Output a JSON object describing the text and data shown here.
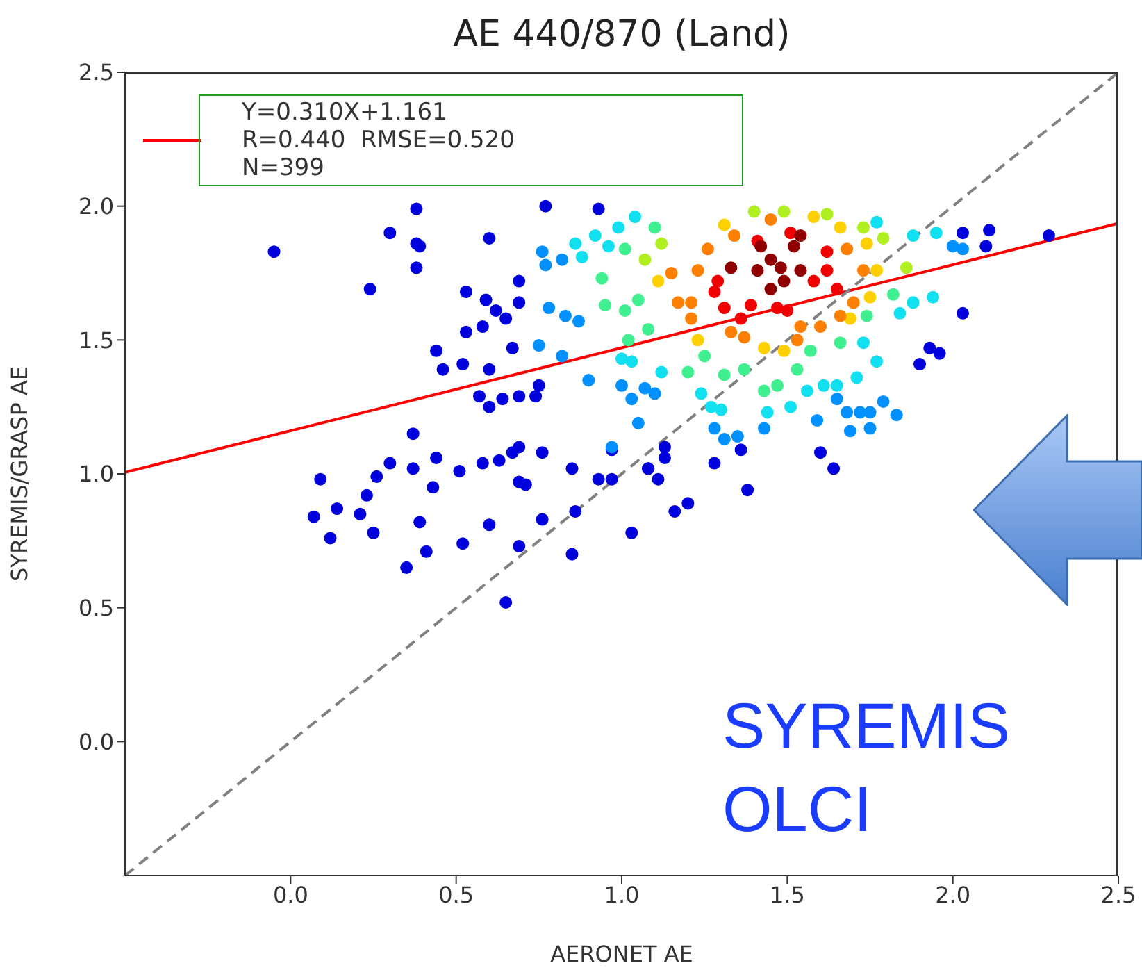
{
  "chart_data": {
    "type": "scatter",
    "title": "AE 440/870 (Land)",
    "xlabel": "AERONET AE",
    "ylabel": "SYREMIS/GRASP AE",
    "xlim": [
      -0.5,
      2.5
    ],
    "ylim": [
      -0.5,
      2.5
    ],
    "xticks": [
      {
        "value": 0,
        "label": "0.0"
      },
      {
        "value": 0.5,
        "label": "0.5"
      },
      {
        "value": 1,
        "label": "1.0"
      },
      {
        "value": 1.5,
        "label": "1.5"
      },
      {
        "value": 2,
        "label": "2.0"
      },
      {
        "value": 2.5,
        "label": "2.5"
      }
    ],
    "yticks": [
      {
        "value": 0,
        "label": "0.0"
      },
      {
        "value": 0.5,
        "label": "0.5"
      },
      {
        "value": 1,
        "label": "1.0"
      },
      {
        "value": 1.5,
        "label": "1.5"
      },
      {
        "value": 2,
        "label": "2.0"
      },
      {
        "value": 2.5,
        "label": "2.5"
      }
    ],
    "grid": false,
    "legend": "top left",
    "marker": "circle",
    "annotations": [
      "R=0.440  RMSE=0.520",
      "N=399",
      "SYREMIS",
      "OLCI"
    ],
    "series": [
      {
        "color": "#0000dd",
        "x": [
          -0.05,
          0.24,
          0.3,
          0.38,
          0.38,
          0.39,
          0.38,
          0.53,
          0.6,
          0.77,
          0.93,
          0.44,
          0.46,
          0.52,
          0.53,
          0.59,
          0.62,
          0.58,
          0.65,
          0.69,
          0.69,
          0.6,
          0.57,
          0.64,
          0.6,
          0.67,
          0.69,
          0.74,
          0.75,
          0.09,
          0.07,
          0.14,
          0.12,
          0.21,
          0.23,
          0.26,
          0.3,
          0.25,
          0.35,
          0.37,
          0.37,
          0.39,
          0.43,
          0.44,
          0.41,
          0.51,
          0.52,
          0.58,
          0.6,
          0.63,
          0.67,
          0.69,
          0.69,
          0.71,
          0.69,
          0.65,
          0.76,
          0.76,
          0.85,
          0.86,
          0.85,
          0.93,
          0.97,
          0.97,
          1.03,
          1.08,
          1.11,
          1.13,
          1.16,
          1.2,
          1.28,
          1.38,
          1.36,
          2.03,
          2.11,
          2.1,
          2.29,
          2.03,
          1.93,
          1.96,
          1.9,
          1.6,
          1.64,
          1.13,
          1.08
        ],
        "values": [
          1.83,
          1.69,
          1.9,
          1.99,
          1.86,
          1.85,
          1.77,
          1.68,
          1.88,
          2.0,
          1.99,
          1.46,
          1.39,
          1.41,
          1.53,
          1.65,
          1.61,
          1.55,
          1.58,
          1.72,
          1.64,
          1.39,
          1.29,
          1.28,
          1.25,
          1.47,
          1.29,
          1.29,
          1.33,
          0.98,
          0.84,
          0.87,
          0.76,
          0.85,
          0.92,
          0.99,
          1.04,
          0.78,
          0.65,
          1.15,
          1.02,
          0.82,
          0.95,
          1.06,
          0.71,
          1.01,
          0.74,
          1.04,
          0.81,
          1.05,
          1.08,
          1.1,
          0.97,
          0.96,
          0.73,
          0.52,
          1.08,
          0.83,
          1.02,
          0.86,
          0.7,
          0.98,
          0.98,
          1.09,
          0.78,
          1.02,
          0.98,
          1.06,
          0.86,
          0.89,
          1.04,
          0.94,
          1.09,
          1.9,
          1.91,
          1.85,
          1.89,
          1.6,
          1.47,
          1.45,
          1.41,
          1.08,
          1.02,
          1.1,
          1.02
        ]
      },
      {
        "color": "#0090ff",
        "x": [
          0.75,
          0.82,
          0.9,
          0.76,
          0.77,
          0.82,
          0.78,
          0.83,
          0.87,
          1.07,
          1.1,
          1.0,
          1.03,
          1.05,
          1.28,
          1.31,
          1.35,
          1.43,
          1.59,
          1.65,
          1.68,
          1.72,
          1.75,
          1.79,
          1.83,
          1.69,
          1.75,
          2.0,
          2.03,
          0.97
        ],
        "values": [
          1.48,
          1.44,
          1.35,
          1.83,
          1.78,
          1.8,
          1.62,
          1.59,
          1.57,
          1.32,
          1.3,
          1.33,
          1.28,
          1.19,
          1.17,
          1.13,
          1.14,
          1.17,
          1.2,
          1.28,
          1.23,
          1.23,
          1.23,
          1.27,
          1.22,
          1.16,
          1.17,
          1.85,
          1.84,
          1.1
        ]
      },
      {
        "color": "#10e0f0",
        "x": [
          0.86,
          0.88,
          0.92,
          0.99,
          1.04,
          0.96,
          1.0,
          1.03,
          1.12,
          1.84,
          1.88,
          1.94,
          1.73,
          1.77,
          1.24,
          1.27,
          1.3,
          1.56,
          1.61,
          1.65,
          1.51,
          1.71,
          1.77,
          1.88,
          1.95,
          1.44
        ],
        "values": [
          1.86,
          1.81,
          1.89,
          1.92,
          1.96,
          1.85,
          1.43,
          1.42,
          1.38,
          1.6,
          1.64,
          1.66,
          1.49,
          1.94,
          1.3,
          1.25,
          1.24,
          1.31,
          1.33,
          1.33,
          1.25,
          1.36,
          1.42,
          1.89,
          1.9,
          1.23
        ]
      },
      {
        "color": "#40f090",
        "x": [
          0.94,
          0.95,
          1.01,
          1.02,
          1.08,
          1.25,
          1.31,
          1.53,
          1.57,
          1.66,
          1.74,
          1.82,
          1.43,
          1.37,
          1.47,
          1.05,
          1.2,
          1.1,
          1.01
        ],
        "values": [
          1.73,
          1.63,
          1.61,
          1.5,
          1.54,
          1.44,
          1.37,
          1.39,
          1.46,
          1.49,
          1.59,
          1.67,
          1.31,
          1.39,
          1.33,
          1.65,
          1.38,
          1.92,
          1.84
        ]
      },
      {
        "color": "#b0f020",
        "x": [
          1.07,
          1.12,
          1.4,
          1.49,
          1.62,
          1.73,
          1.79,
          1.86
        ],
        "values": [
          1.8,
          1.86,
          1.98,
          1.98,
          1.97,
          1.92,
          1.88,
          1.77
        ]
      },
      {
        "color": "#ffd000",
        "x": [
          1.23,
          1.11,
          1.43,
          1.58,
          1.66,
          1.74,
          1.77,
          1.75,
          1.31,
          1.69,
          1.49
        ],
        "values": [
          1.5,
          1.72,
          1.47,
          1.96,
          1.92,
          1.86,
          1.76,
          1.66,
          1.93,
          1.58,
          1.46
        ]
      },
      {
        "color": "#ff8000",
        "x": [
          1.23,
          1.21,
          1.21,
          1.26,
          1.34,
          1.45,
          1.33,
          1.37,
          1.54,
          1.66,
          1.68,
          1.7,
          1.73,
          1.17,
          1.15,
          1.6,
          1.53
        ],
        "values": [
          1.76,
          1.64,
          1.58,
          1.84,
          1.89,
          1.95,
          1.53,
          1.51,
          1.55,
          1.59,
          1.84,
          1.64,
          1.76,
          1.64,
          1.75,
          1.55,
          1.5
        ]
      },
      {
        "color": "#f00000",
        "x": [
          1.28,
          1.29,
          1.31,
          1.39,
          1.47,
          1.62,
          1.58,
          1.65,
          1.36,
          1.5,
          1.41,
          1.51,
          1.62
        ],
        "values": [
          1.68,
          1.72,
          1.62,
          1.63,
          1.62,
          1.83,
          1.72,
          1.69,
          1.58,
          1.61,
          1.87,
          1.9,
          1.76
        ]
      },
      {
        "color": "#900000",
        "x": [
          1.42,
          1.45,
          1.48,
          1.52,
          1.54,
          1.41,
          1.45,
          1.54,
          1.33,
          1.49
        ],
        "values": [
          1.85,
          1.8,
          1.77,
          1.85,
          1.89,
          1.76,
          1.69,
          1.76,
          1.77,
          1.72
        ]
      },
      {
        "type": "line",
        "name": "Y=0.310X+1.161",
        "color": "#ff0000",
        "line_style": "solid",
        "marker": "none",
        "x": [
          -0.5,
          2.5
        ],
        "values": [
          1.006,
          1.936
        ]
      },
      {
        "type": "line",
        "color": "#808080",
        "line_style": "dashed",
        "marker": "none",
        "x": [
          -0.5,
          2.5
        ],
        "values": [
          -0.5,
          2.5
        ]
      }
    ]
  }
}
